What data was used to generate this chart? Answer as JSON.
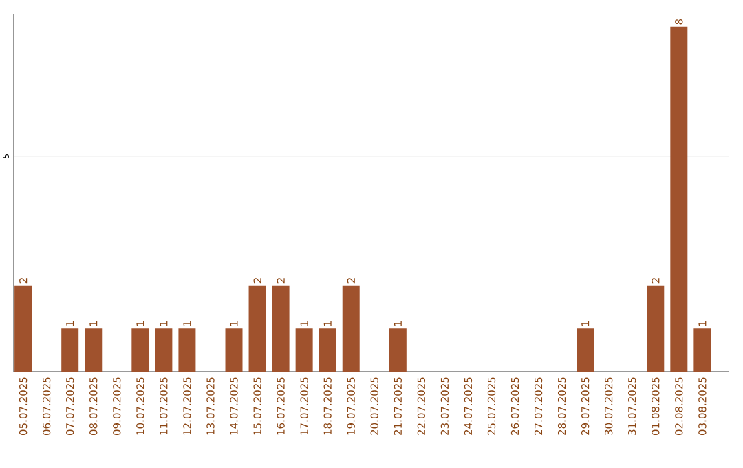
{
  "chart_data": {
    "type": "bar",
    "categories": [
      "05.07.2025",
      "06.07.2025",
      "07.07.2025",
      "08.07.2025",
      "09.07.2025",
      "10.07.2025",
      "11.07.2025",
      "12.07.2025",
      "13.07.2025",
      "14.07.2025",
      "15.07.2025",
      "16.07.2025",
      "17.07.2025",
      "18.07.2025",
      "19.07.2025",
      "20.07.2025",
      "21.07.2025",
      "22.07.2025",
      "23.07.2025",
      "24.07.2025",
      "25.07.2025",
      "26.07.2025",
      "27.07.2025",
      "28.07.2025",
      "29.07.2025",
      "30.07.2025",
      "31.07.2025",
      "01.08.2025",
      "02.08.2025",
      "03.08.2025"
    ],
    "values": [
      2,
      0,
      1,
      1,
      0,
      1,
      1,
      1,
      0,
      1,
      2,
      2,
      1,
      1,
      2,
      0,
      1,
      0,
      0,
      0,
      0,
      0,
      0,
      0,
      1,
      0,
      0,
      2,
      8,
      1
    ],
    "value_labels": [
      "2",
      null,
      "1",
      "1",
      null,
      "1",
      "1",
      "1",
      null,
      "1",
      "2",
      "2",
      "1",
      "1",
      "2",
      null,
      "1",
      null,
      null,
      null,
      null,
      null,
      null,
      null,
      "1",
      null,
      null,
      "2",
      "8",
      "1"
    ],
    "color": "#a0522d",
    "ylim": [
      0,
      8.3
    ],
    "yticks": [
      5
    ],
    "grid": "y"
  }
}
